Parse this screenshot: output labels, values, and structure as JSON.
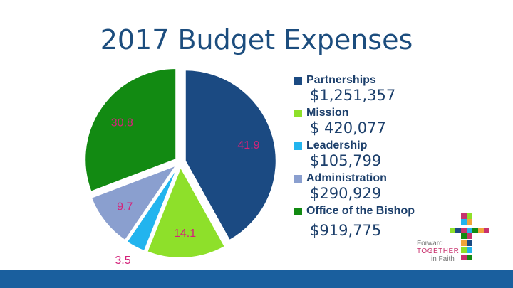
{
  "chart_data": {
    "type": "pie",
    "title": "2017 Budget Expenses",
    "slices": [
      {
        "name": "Partnerships",
        "value": 41.9,
        "label": "41.9",
        "amount": "$1,251,357",
        "color": "#1b4a82"
      },
      {
        "name": "Mission",
        "value": 14.1,
        "label": "14.1",
        "amount": "$ 420,077",
        "color": "#8ee02a"
      },
      {
        "name": "Leadership",
        "value": 3.5,
        "label": "3.5",
        "amount": "$105,799",
        "color": "#22b4ee"
      },
      {
        "name": "Administration",
        "value": 9.7,
        "label": "9.7",
        "amount": "$290,929",
        "color": "#8a9fcf"
      },
      {
        "name": "Office of the Bishop",
        "value": 30.8,
        "label": "30.8",
        "amount": "$919,775",
        "color": "#128a12"
      }
    ],
    "label_color": "#d4237a",
    "exploded": true,
    "legend_position": "right"
  },
  "logo": {
    "line1": "Forward",
    "line2": "TOGETHER",
    "line3": "in Faith"
  }
}
